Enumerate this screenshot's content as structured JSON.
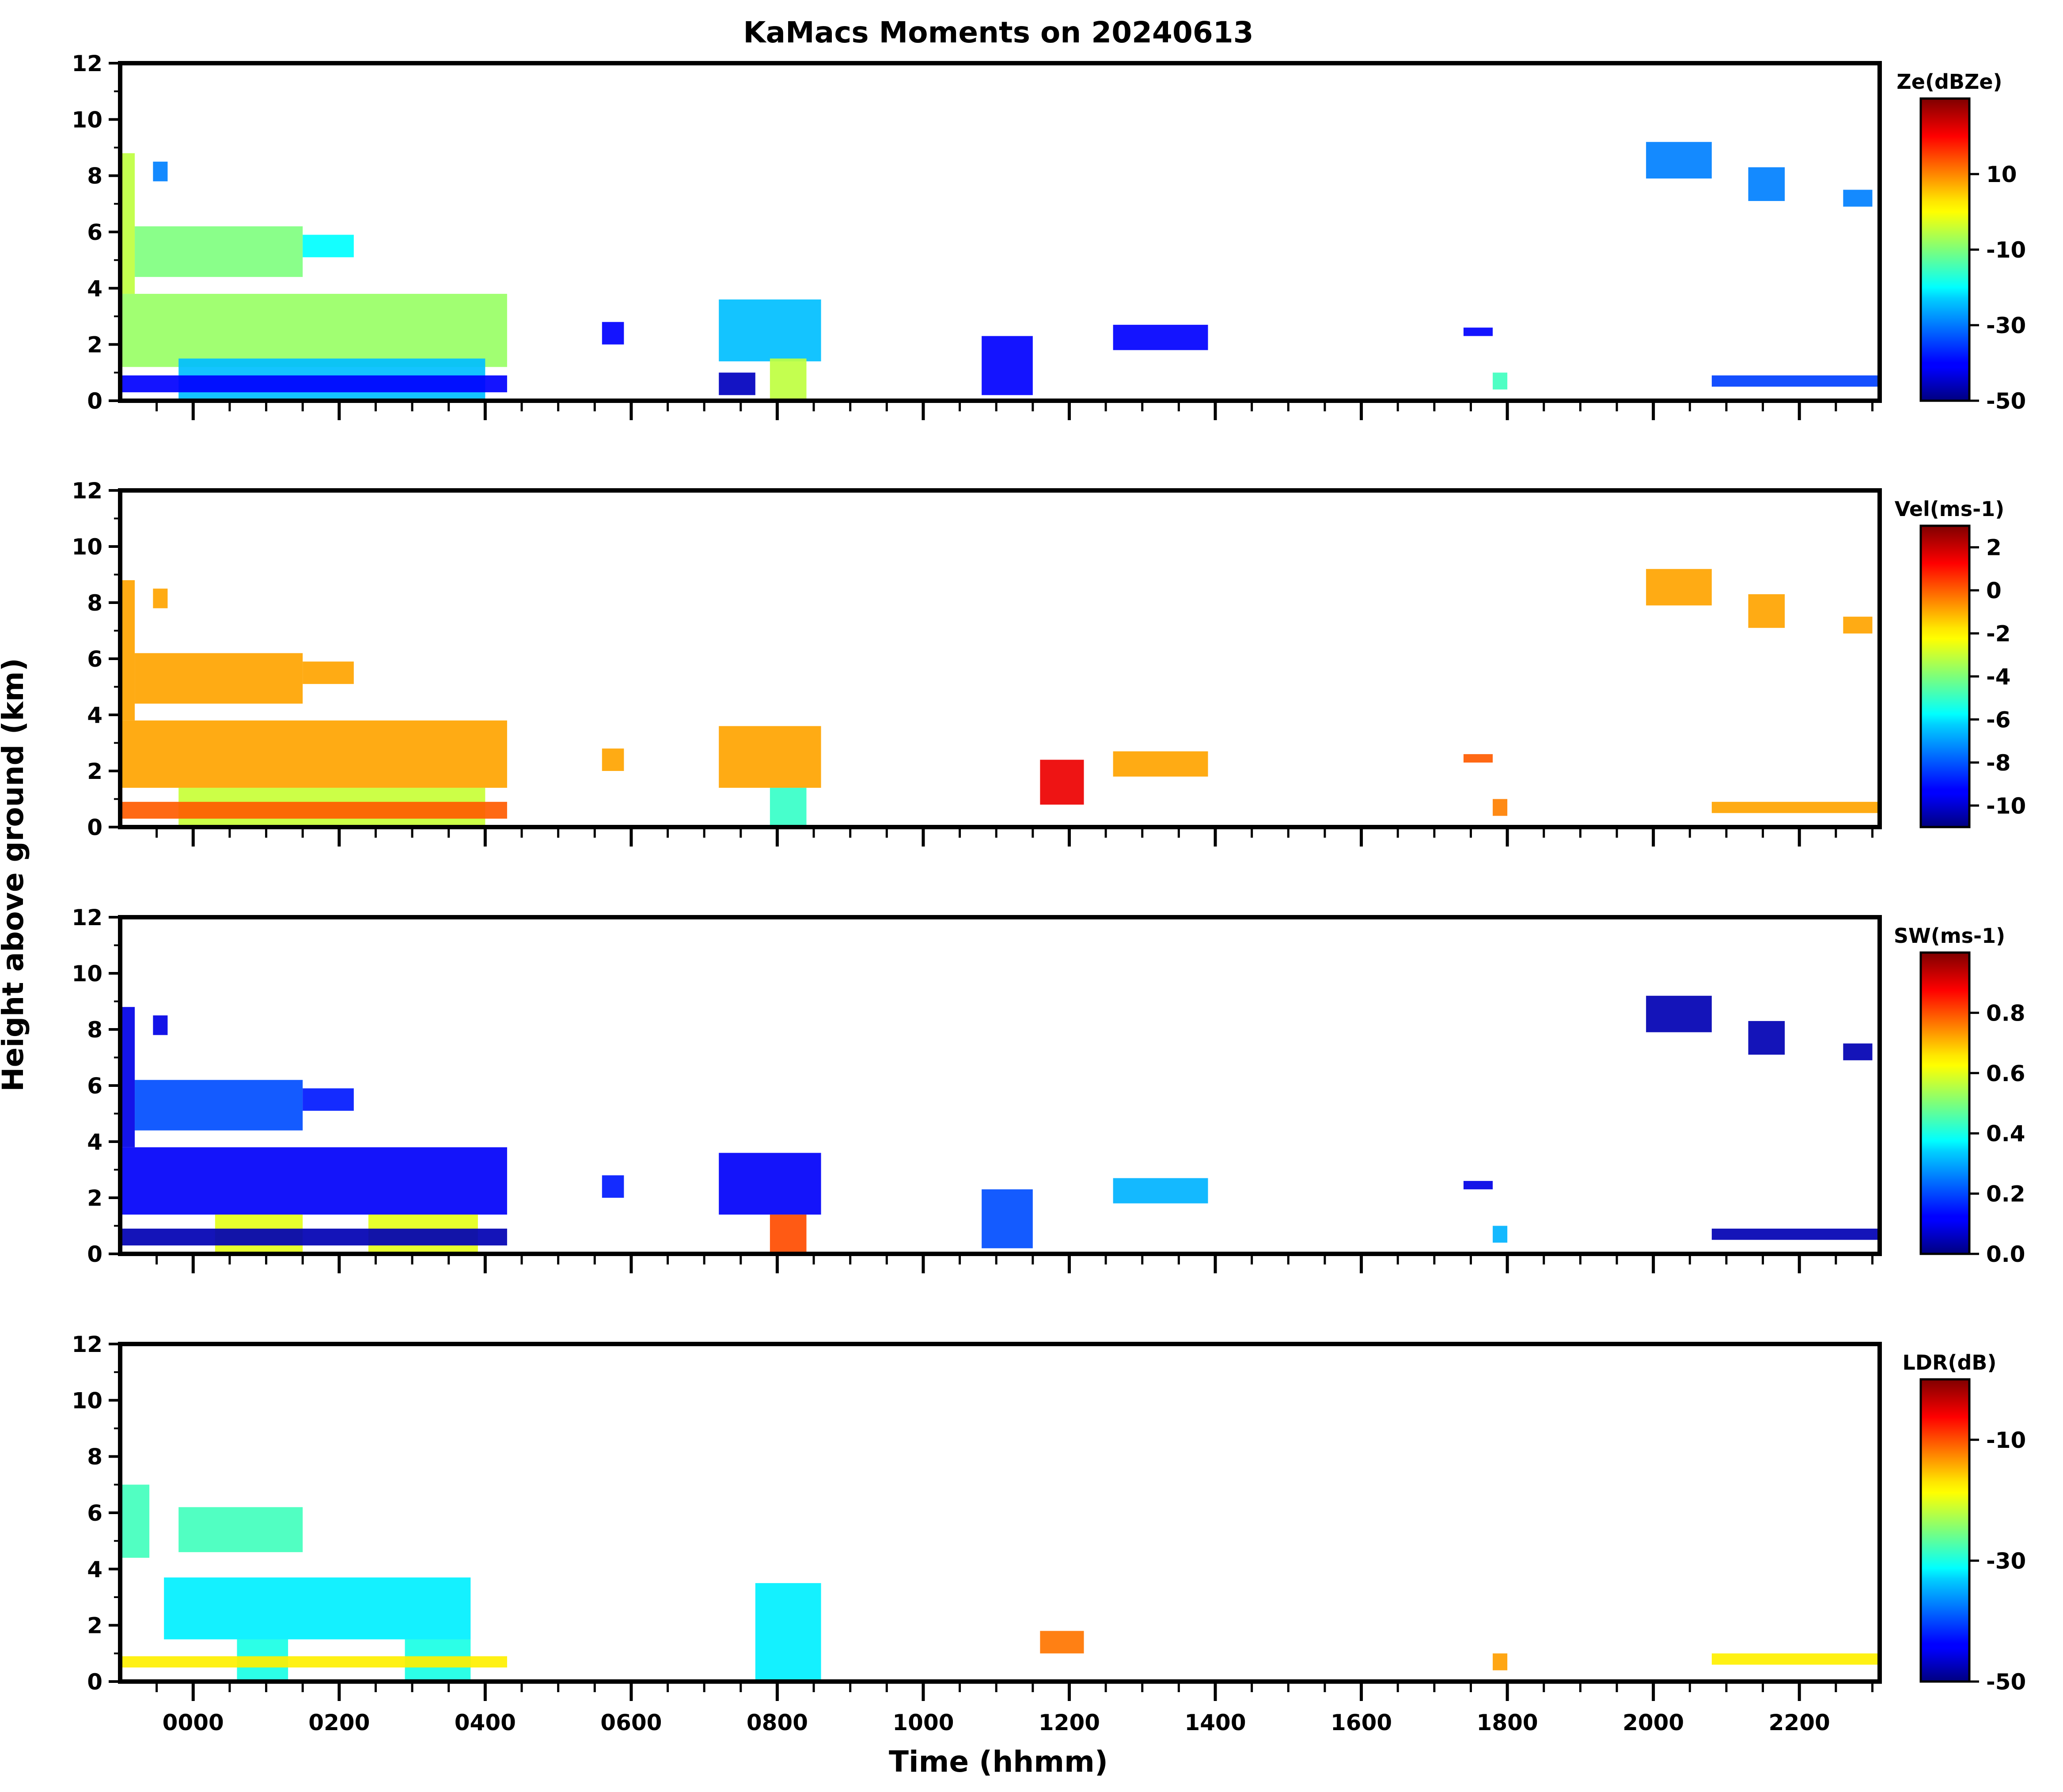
{
  "title": "KaMacs Moments on 20240613",
  "ylabel": "Height above ground (km)",
  "xlabel": "Time (hhmm)",
  "chart_data": {
    "type": "heatmap",
    "x_range_hours": [
      -1.0,
      23.1
    ],
    "y_range_km": [
      0,
      12
    ],
    "x_major_ticks": [
      0,
      2,
      4,
      6,
      8,
      10,
      12,
      14,
      16,
      18,
      20,
      22
    ],
    "x_tick_labels": [
      "0000",
      "0200",
      "0400",
      "0600",
      "0800",
      "1000",
      "1200",
      "1400",
      "1600",
      "1800",
      "2000",
      "2200"
    ],
    "y_ticks": [
      0,
      2,
      4,
      6,
      8,
      10,
      12
    ],
    "y_tick_labels": [
      "0",
      "2",
      "4",
      "6",
      "8",
      "10",
      "12"
    ],
    "panels": [
      {
        "id": "ze",
        "colorbar_label": "Ze(dBZe)",
        "cbar_range": [
          -50,
          30
        ],
        "cbar_ticks": [
          -50,
          -30,
          -10,
          10
        ],
        "cbar_tick_labels": [
          "-50",
          "-30",
          "-10",
          "10"
        ],
        "echoes": [
          {
            "t0": -1.0,
            "t1": -0.8,
            "z0": 3.8,
            "z1": 8.8,
            "value": -5
          },
          {
            "t0": -0.8,
            "t1": 1.5,
            "z0": 4.4,
            "z1": 6.2,
            "value": -10
          },
          {
            "t0": 1.5,
            "t1": 2.2,
            "z0": 5.1,
            "z1": 5.9,
            "value": -20
          },
          {
            "t0": -0.55,
            "t1": -0.35,
            "z0": 7.8,
            "z1": 8.5,
            "value": -30
          },
          {
            "t0": -1.0,
            "t1": 4.3,
            "z0": 1.2,
            "z1": 3.8,
            "value": -8
          },
          {
            "t0": -0.2,
            "t1": 4.0,
            "z0": 0.0,
            "z1": 1.5,
            "value": -25
          },
          {
            "t0": -1.0,
            "t1": 4.3,
            "z0": 0.3,
            "z1": 0.9,
            "value": -40
          },
          {
            "t0": 5.6,
            "t1": 5.9,
            "z0": 2.0,
            "z1": 2.8,
            "value": -40
          },
          {
            "t0": 7.2,
            "t1": 8.6,
            "z0": 1.4,
            "z1": 3.6,
            "value": -25
          },
          {
            "t0": 7.9,
            "t1": 8.4,
            "z0": 0.0,
            "z1": 1.5,
            "value": -5
          },
          {
            "t0": 7.2,
            "t1": 7.7,
            "z0": 0.2,
            "z1": 1.0,
            "value": -45
          },
          {
            "t0": 10.8,
            "t1": 11.5,
            "z0": 0.2,
            "z1": 2.3,
            "value": -40
          },
          {
            "t0": 12.6,
            "t1": 13.9,
            "z0": 1.8,
            "z1": 2.7,
            "value": -40
          },
          {
            "t0": 17.4,
            "t1": 17.8,
            "z0": 2.3,
            "z1": 2.6,
            "value": -40
          },
          {
            "t0": 17.8,
            "t1": 18.0,
            "z0": 0.4,
            "z1": 1.0,
            "value": -15
          },
          {
            "t0": 19.9,
            "t1": 20.8,
            "z0": 7.9,
            "z1": 9.2,
            "value": -30
          },
          {
            "t0": 21.3,
            "t1": 21.8,
            "z0": 7.1,
            "z1": 8.3,
            "value": -30
          },
          {
            "t0": 22.6,
            "t1": 23.0,
            "z0": 6.9,
            "z1": 7.5,
            "value": -30
          },
          {
            "t0": 20.8,
            "t1": 23.1,
            "z0": 0.5,
            "z1": 0.9,
            "value": -35
          }
        ]
      },
      {
        "id": "vel",
        "colorbar_label": "Vel(ms-1)",
        "cbar_range": [
          -11,
          3
        ],
        "cbar_ticks": [
          2,
          0,
          -2,
          -4,
          -6,
          -8,
          -10
        ],
        "cbar_tick_labels": [
          "2",
          "0",
          "-2",
          "-4",
          "-6",
          "-8",
          "-10"
        ],
        "echoes": [
          {
            "t0": -1.0,
            "t1": -0.8,
            "z0": 3.8,
            "z1": 8.8,
            "value": -1.0
          },
          {
            "t0": -0.8,
            "t1": 1.5,
            "z0": 4.4,
            "z1": 6.2,
            "value": -1.0
          },
          {
            "t0": 1.5,
            "t1": 2.2,
            "z0": 5.1,
            "z1": 5.9,
            "value": -1.0
          },
          {
            "t0": -0.55,
            "t1": -0.35,
            "z0": 7.8,
            "z1": 8.5,
            "value": -1.0
          },
          {
            "t0": -1.0,
            "t1": 4.3,
            "z0": 1.4,
            "z1": 3.8,
            "value": -1.0
          },
          {
            "t0": -0.2,
            "t1": 4.0,
            "z0": 0.0,
            "z1": 1.4,
            "value": -3.0
          },
          {
            "t0": -1.0,
            "t1": 4.3,
            "z0": 0.3,
            "z1": 0.9,
            "value": 0.0
          },
          {
            "t0": 5.6,
            "t1": 5.9,
            "z0": 2.0,
            "z1": 2.8,
            "value": -1.0
          },
          {
            "t0": 7.2,
            "t1": 8.6,
            "z0": 1.4,
            "z1": 3.6,
            "value": -1.0
          },
          {
            "t0": 7.9,
            "t1": 8.4,
            "z0": 0.0,
            "z1": 1.4,
            "value": -5.0
          },
          {
            "t0": 11.6,
            "t1": 12.2,
            "z0": 0.8,
            "z1": 2.4,
            "value": 1.5
          },
          {
            "t0": 12.6,
            "t1": 13.9,
            "z0": 1.8,
            "z1": 2.7,
            "value": -1.0
          },
          {
            "t0": 17.4,
            "t1": 17.8,
            "z0": 2.3,
            "z1": 2.6,
            "value": 0.0
          },
          {
            "t0": 17.8,
            "t1": 18.0,
            "z0": 0.4,
            "z1": 1.0,
            "value": -0.5
          },
          {
            "t0": 19.9,
            "t1": 20.8,
            "z0": 7.9,
            "z1": 9.2,
            "value": -1.0
          },
          {
            "t0": 21.3,
            "t1": 21.8,
            "z0": 7.1,
            "z1": 8.3,
            "value": -1.0
          },
          {
            "t0": 22.6,
            "t1": 23.0,
            "z0": 6.9,
            "z1": 7.5,
            "value": -1.0
          },
          {
            "t0": 20.8,
            "t1": 23.1,
            "z0": 0.5,
            "z1": 0.9,
            "value": -1.0
          }
        ]
      },
      {
        "id": "sw",
        "colorbar_label": "SW(ms-1)",
        "cbar_range": [
          0.0,
          1.0
        ],
        "cbar_ticks": [
          0.0,
          0.2,
          0.4,
          0.6,
          0.8
        ],
        "cbar_tick_labels": [
          "0.0",
          "0.2",
          "0.4",
          "0.6",
          "0.8"
        ],
        "echoes": [
          {
            "t0": -1.0,
            "t1": -0.8,
            "z0": 3.8,
            "z1": 8.8,
            "value": 0.1
          },
          {
            "t0": -0.8,
            "t1": 1.5,
            "z0": 4.4,
            "z1": 6.2,
            "value": 0.2
          },
          {
            "t0": 1.5,
            "t1": 2.2,
            "z0": 5.1,
            "z1": 5.9,
            "value": 0.15
          },
          {
            "t0": -0.55,
            "t1": -0.35,
            "z0": 7.8,
            "z1": 8.5,
            "value": 0.1
          },
          {
            "t0": -1.0,
            "t1": 4.3,
            "z0": 1.4,
            "z1": 3.8,
            "value": 0.12
          },
          {
            "t0": 0.3,
            "t1": 1.5,
            "z0": 0.0,
            "z1": 1.4,
            "value": 0.6
          },
          {
            "t0": 2.4,
            "t1": 3.9,
            "z0": 0.0,
            "z1": 1.4,
            "value": 0.6
          },
          {
            "t0": -1.0,
            "t1": 4.3,
            "z0": 0.3,
            "z1": 0.9,
            "value": 0.05
          },
          {
            "t0": 5.6,
            "t1": 5.9,
            "z0": 2.0,
            "z1": 2.8,
            "value": 0.15
          },
          {
            "t0": 7.2,
            "t1": 8.6,
            "z0": 1.4,
            "z1": 3.6,
            "value": 0.12
          },
          {
            "t0": 7.9,
            "t1": 8.4,
            "z0": 0.0,
            "z1": 1.4,
            "value": 0.8
          },
          {
            "t0": 10.8,
            "t1": 11.5,
            "z0": 0.2,
            "z1": 2.3,
            "value": 0.2
          },
          {
            "t0": 12.6,
            "t1": 13.9,
            "z0": 1.8,
            "z1": 2.7,
            "value": 0.3
          },
          {
            "t0": 17.4,
            "t1": 17.8,
            "z0": 2.3,
            "z1": 2.6,
            "value": 0.1
          },
          {
            "t0": 17.8,
            "t1": 18.0,
            "z0": 0.4,
            "z1": 1.0,
            "value": 0.3
          },
          {
            "t0": 19.9,
            "t1": 20.8,
            "z0": 7.9,
            "z1": 9.2,
            "value": 0.05
          },
          {
            "t0": 21.3,
            "t1": 21.8,
            "z0": 7.1,
            "z1": 8.3,
            "value": 0.05
          },
          {
            "t0": 22.6,
            "t1": 23.0,
            "z0": 6.9,
            "z1": 7.5,
            "value": 0.05
          },
          {
            "t0": 20.8,
            "t1": 23.1,
            "z0": 0.5,
            "z1": 0.9,
            "value": 0.05
          }
        ]
      },
      {
        "id": "ldr",
        "colorbar_label": "LDR(dB)",
        "cbar_range": [
          -50,
          0
        ],
        "cbar_ticks": [
          -50,
          -30,
          -10
        ],
        "cbar_tick_labels": [
          "-50",
          "-30",
          "-10"
        ],
        "echoes": [
          {
            "t0": -1.0,
            "t1": -0.6,
            "z0": 4.4,
            "z1": 7.0,
            "value": -28
          },
          {
            "t0": -0.2,
            "t1": 1.5,
            "z0": 4.6,
            "z1": 6.2,
            "value": -28
          },
          {
            "t0": -0.4,
            "t1": 3.8,
            "z0": 1.5,
            "z1": 3.7,
            "value": -32
          },
          {
            "t0": 0.6,
            "t1": 1.3,
            "z0": 0.0,
            "z1": 1.5,
            "value": -30
          },
          {
            "t0": 2.9,
            "t1": 3.8,
            "z0": 0.0,
            "z1": 1.5,
            "value": -30
          },
          {
            "t0": -1.0,
            "t1": 4.3,
            "z0": 0.5,
            "z1": 0.9,
            "value": -18
          },
          {
            "t0": 7.7,
            "t1": 8.6,
            "z0": 0.0,
            "z1": 3.5,
            "value": -32
          },
          {
            "t0": 11.6,
            "t1": 12.2,
            "z0": 1.0,
            "z1": 1.8,
            "value": -12
          },
          {
            "t0": 17.8,
            "t1": 18.0,
            "z0": 0.4,
            "z1": 1.0,
            "value": -14
          },
          {
            "t0": 20.8,
            "t1": 23.1,
            "z0": 0.6,
            "z1": 1.0,
            "value": -18
          }
        ]
      }
    ]
  }
}
